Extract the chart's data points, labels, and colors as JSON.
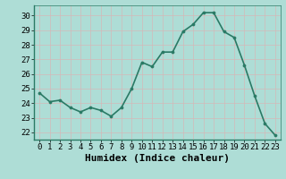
{
  "x": [
    0,
    1,
    2,
    3,
    4,
    5,
    6,
    7,
    8,
    9,
    10,
    11,
    12,
    13,
    14,
    15,
    16,
    17,
    18,
    19,
    20,
    21,
    22,
    23
  ],
  "y": [
    24.7,
    24.1,
    24.2,
    23.7,
    23.4,
    23.7,
    23.5,
    23.1,
    23.7,
    25.0,
    26.8,
    26.5,
    27.5,
    27.5,
    28.9,
    29.4,
    30.2,
    30.2,
    28.9,
    28.5,
    26.6,
    24.5,
    22.6,
    21.8
  ],
  "line_color": "#2a7a65",
  "marker": "o",
  "marker_size": 2.2,
  "background_color": "#aeddd6",
  "grid_color": "#c8eeea",
  "xlabel": "Humidex (Indice chaleur)",
  "xlim": [
    -0.5,
    23.5
  ],
  "ylim": [
    21.5,
    30.7
  ],
  "yticks": [
    22,
    23,
    24,
    25,
    26,
    27,
    28,
    29,
    30
  ],
  "xticks": [
    0,
    1,
    2,
    3,
    4,
    5,
    6,
    7,
    8,
    9,
    10,
    11,
    12,
    13,
    14,
    15,
    16,
    17,
    18,
    19,
    20,
    21,
    22,
    23
  ],
  "tick_fontsize": 6.5,
  "xlabel_fontsize": 8,
  "line_width": 1.2,
  "spine_color": "#2a7a65",
  "bottom_bar_color": "#2a7a65",
  "bottom_bar_height": 0.18
}
